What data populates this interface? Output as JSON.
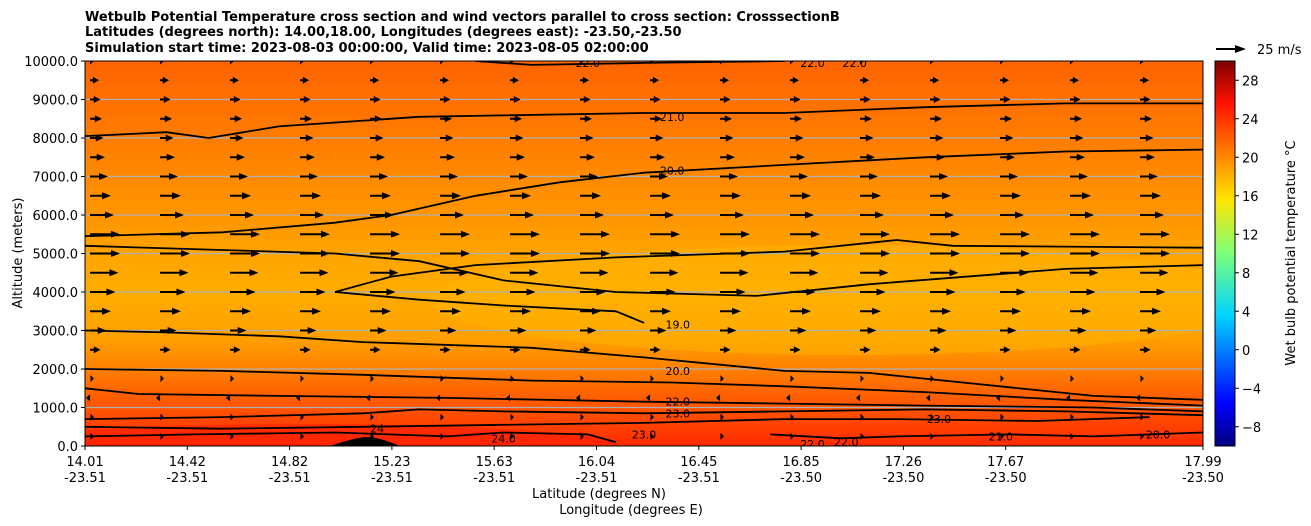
{
  "chart_data": {
    "type": "heatmap",
    "subtype": "filled-contour cross section with contour lines and wind vectors",
    "title_lines": [
      "Wetbulb Potential Temperature cross section and wind vectors parallel to cross section: CrosssectionB",
      "Latitudes (degrees north): 14.00,18.00, Longitudes (degrees east): -23.50,-23.50",
      "Simulation start time: 2023-08-03 00:00:00, Valid time: 2023-08-05 02:00:00"
    ],
    "ylabel": "Altitude (meters)",
    "xlabel_lines": [
      "Latitude (degrees N)",
      "Longitude (degrees E)"
    ],
    "ylim": [
      0,
      10000
    ],
    "xlim": [
      14.01,
      17.99
    ],
    "y_ticks": [
      0,
      1000,
      2000,
      3000,
      4000,
      5000,
      6000,
      7000,
      8000,
      9000,
      10000
    ],
    "y_tick_labels": [
      "0.0",
      "1000.0",
      "2000.0",
      "3000.0",
      "4000.0",
      "5000.0",
      "6000.0",
      "7000.0",
      "8000.0",
      "9000.0",
      "10000.0"
    ],
    "x_ticks": [
      {
        "lat": "14.01",
        "lon": "-23.51"
      },
      {
        "lat": "14.42",
        "lon": "-23.51"
      },
      {
        "lat": "14.82",
        "lon": "-23.51"
      },
      {
        "lat": "15.23",
        "lon": "-23.51"
      },
      {
        "lat": "15.63",
        "lon": "-23.51"
      },
      {
        "lat": "16.04",
        "lon": "-23.51"
      },
      {
        "lat": "16.45",
        "lon": "-23.51"
      },
      {
        "lat": "16.85",
        "lon": "-23.50"
      },
      {
        "lat": "17.26",
        "lon": "-23.50"
      },
      {
        "lat": "17.67",
        "lon": "-23.50"
      },
      {
        "lat": "17.99",
        "lon": "-23.50"
      }
    ],
    "grid": "horizontal gridlines at y ticks",
    "colorbar": {
      "label": "Wet bulb potential temperature $^\\circ$C",
      "label_display": "Wet bulb potential temperature °C",
      "range": [
        -10,
        30
      ],
      "ticks": [
        -8,
        -4,
        0,
        4,
        8,
        12,
        16,
        20,
        24,
        28
      ],
      "tick_labels": [
        "−8",
        "−4",
        "0",
        "4",
        "8",
        "12",
        "16",
        "20",
        "24",
        "28"
      ],
      "colormap": "jet",
      "placement": "right"
    },
    "vector_key": {
      "label": "25 m/s",
      "placement": "top-right"
    },
    "contour_labels": [
      {
        "text": "22.0",
        "x_lat": 15.8,
        "y_alt": 9950
      },
      {
        "text": "22.0",
        "x_lat": 16.6,
        "y_alt": 9950
      },
      {
        "text": "22.0",
        "x_lat": 16.75,
        "y_alt": 9950
      },
      {
        "text": "21.0",
        "x_lat": 16.1,
        "y_alt": 8550
      },
      {
        "text": "20.0",
        "x_lat": 16.1,
        "y_alt": 7150
      },
      {
        "text": "19.0",
        "x_lat": 16.12,
        "y_alt": 3150
      },
      {
        "text": "20.0",
        "x_lat": 16.12,
        "y_alt": 1950
      },
      {
        "text": "22.0",
        "x_lat": 16.12,
        "y_alt": 1150
      },
      {
        "text": "23.0",
        "x_lat": 16.12,
        "y_alt": 850
      },
      {
        "text": "23.0",
        "x_lat": 16.0,
        "y_alt": 300
      },
      {
        "text": "24.0",
        "x_lat": 15.5,
        "y_alt": 200
      },
      {
        "text": "24",
        "x_lat": 15.05,
        "y_alt": 450
      },
      {
        "text": "23.0",
        "x_lat": 17.05,
        "y_alt": 700
      },
      {
        "text": "21.0",
        "x_lat": 17.27,
        "y_alt": 250
      },
      {
        "text": "22.0",
        "x_lat": 16.6,
        "y_alt": 50
      },
      {
        "text": "22.0",
        "x_lat": 16.72,
        "y_alt": 100
      },
      {
        "text": "20.0",
        "x_lat": 17.83,
        "y_alt": 300
      }
    ],
    "contour_levels_shown": [
      19.0,
      20.0,
      21.0,
      22.0,
      23.0,
      24.0
    ],
    "field_summary": {
      "surface_to_500m": "≈24–26 °C (red-orange)",
      "1000_to_2000m": "≈21–23 °C",
      "3000_to_5000m": "≈18.5–19.5 °C (minimum, amber)",
      "6000_to_8000m": "≈20–21 °C",
      "9000_to_10000m": "≈22 °C"
    },
    "wind_vectors": {
      "direction": "predominantly left-to-right (southerly component along section)",
      "rows_alt_m": [
        250,
        750,
        1250,
        1750,
        2500,
        3000,
        3500,
        4000,
        4500,
        5000,
        5500,
        6000,
        6500,
        7000,
        7500,
        8000,
        8500,
        9000,
        9500,
        10000
      ],
      "row_relative_speed": [
        0.05,
        0.05,
        -0.1,
        0.05,
        0.35,
        0.55,
        0.7,
        0.85,
        0.95,
        1.0,
        1.0,
        0.8,
        0.7,
        0.6,
        0.5,
        0.45,
        0.4,
        0.35,
        0.3,
        0.1
      ]
    }
  }
}
